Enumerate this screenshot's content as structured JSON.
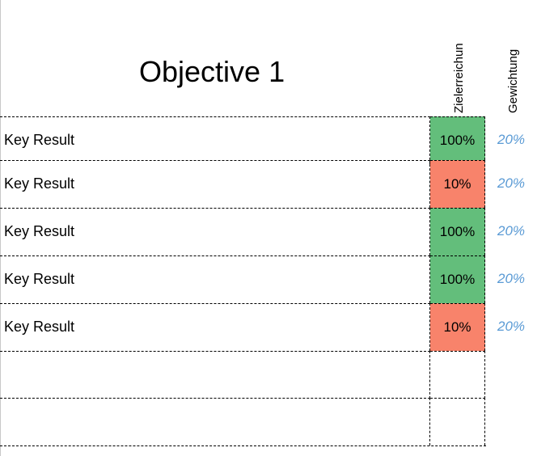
{
  "title": "Objective 1",
  "headers": {
    "goal_achievement": "Zielerreichun",
    "weighting": "Gewichtung"
  },
  "colors": {
    "high": "#63be7b",
    "low": "#f8836b",
    "weight_text": "#5b9bd5"
  },
  "rows": [
    {
      "label": "Key Result",
      "goal": "100%",
      "goal_level": "high",
      "weight": "20%"
    },
    {
      "label": "Key Result",
      "goal": "10%",
      "goal_level": "low",
      "weight": "20%"
    },
    {
      "label": "Key Result",
      "goal": "100%",
      "goal_level": "high",
      "weight": "20%"
    },
    {
      "label": "Key Result",
      "goal": "100%",
      "goal_level": "high",
      "weight": "20%"
    },
    {
      "label": "Key Result",
      "goal": "10%",
      "goal_level": "low",
      "weight": "20%"
    },
    {
      "label": "",
      "goal": "",
      "goal_level": "",
      "weight": ""
    },
    {
      "label": "",
      "goal": "",
      "goal_level": "",
      "weight": ""
    }
  ]
}
